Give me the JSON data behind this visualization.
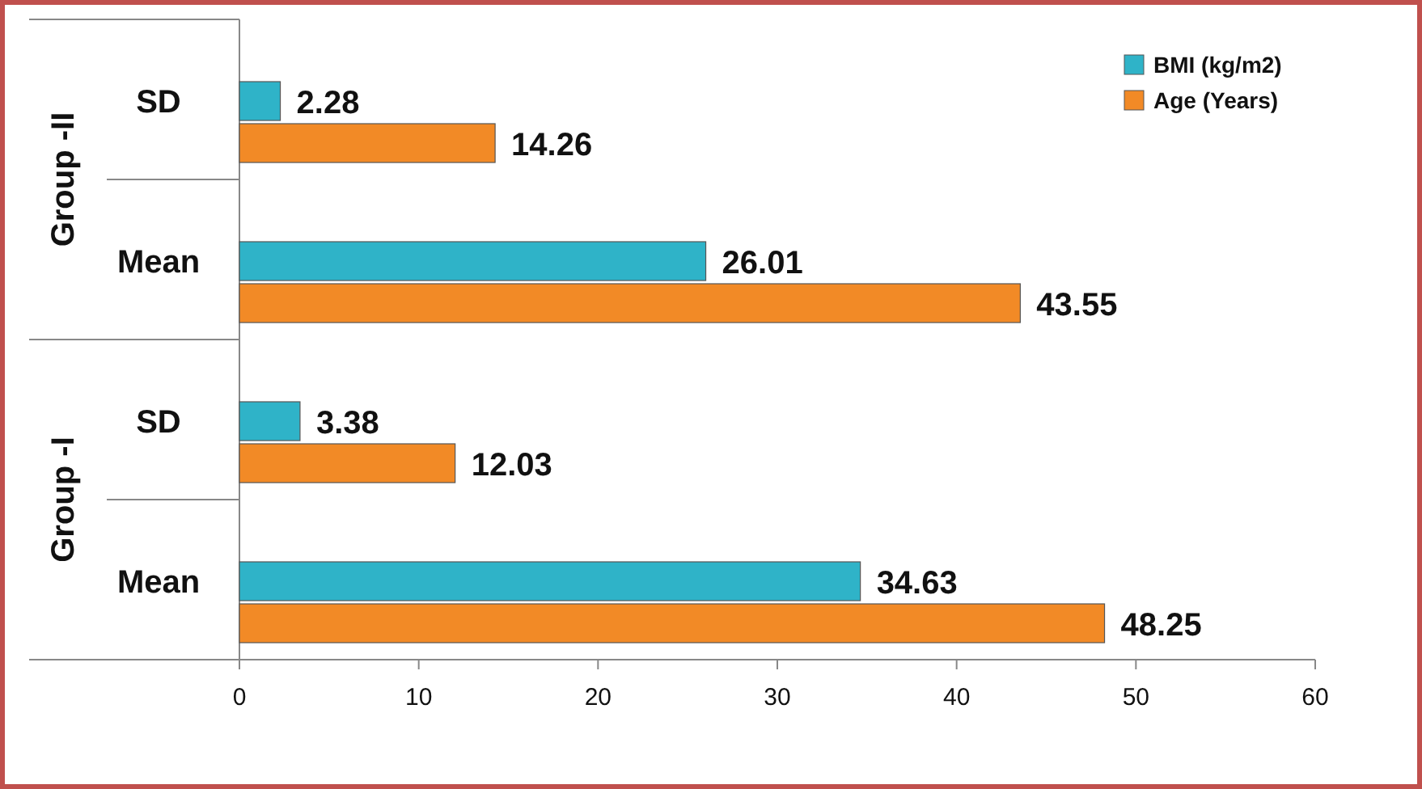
{
  "chart_data": {
    "type": "bar",
    "orientation": "horizontal",
    "categories": [
      "SD",
      "Mean",
      "SD",
      "Mean"
    ],
    "series": [
      {
        "name": "BMI (kg/m2)",
        "color": "#2fb3c8",
        "values": [
          2.28,
          26.01,
          3.38,
          34.63
        ]
      },
      {
        "name": "Age (Years)",
        "color": "#f28a26",
        "values": [
          14.26,
          43.55,
          12.03,
          48.25
        ]
      }
    ],
    "xlim": [
      0,
      60
    ],
    "xticks": [
      0,
      10,
      20,
      30,
      40,
      50,
      60
    ],
    "grid": false,
    "legend": "top right",
    "data_labels": true,
    "annotations": [
      "Group -II",
      "Group -I"
    ]
  }
}
